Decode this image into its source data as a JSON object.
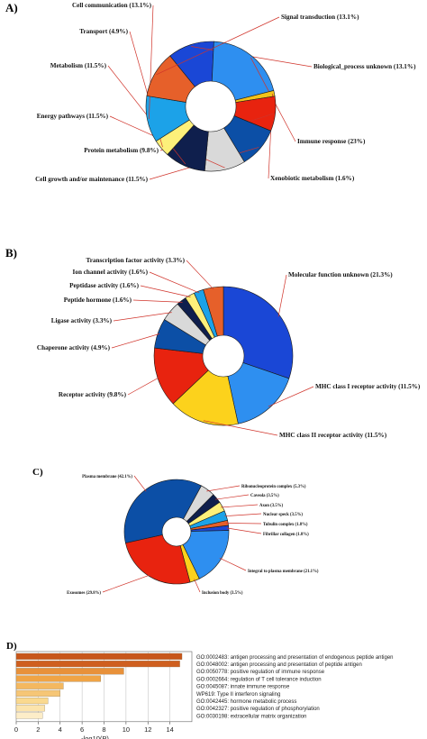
{
  "chart_data": [
    {
      "panel": "A)",
      "type": "pie",
      "slices": [
        {
          "label": "Biological_process unknown",
          "value": 13.1,
          "color": "#1a47d6",
          "text": "Biological_process unknown (13.1%)"
        },
        {
          "label": "Immune response",
          "value": 23,
          "color": "#2e8ff0",
          "text": "Immune response (23%)"
        },
        {
          "label": "Xenobiotic metabolism",
          "value": 1.6,
          "color": "#f2c21b",
          "text": "Xenobiotic metabolism (1.6%)"
        },
        {
          "label": "Protein metabolism",
          "value": 9.8,
          "color": "#e8230f",
          "text": "Protein metabolism (9.8%)"
        },
        {
          "label": "Cell growth and/or maintenance",
          "value": 11.5,
          "color": "#0c4fa6",
          "text": "Cell growth and/or maintenance (11.5%)"
        },
        {
          "label": "Energy pathways",
          "value": 11.5,
          "color": "#d9d9d9",
          "text": "Energy pathways (11.5%)"
        },
        {
          "label": "Metabolism",
          "value": 11.5,
          "color": "#0f1f4d",
          "text": "Metabolism (11.5%)"
        },
        {
          "label": "Transport",
          "value": 4.9,
          "color": "#fdf07a",
          "text": "Transport (4.9%)"
        },
        {
          "label": "Cell communication",
          "value": 13.1,
          "color": "#1ca2e8",
          "text": "Cell communication (13.1%)"
        },
        {
          "label": "Signal transduction",
          "value": 13.1,
          "color": "#e6602a",
          "text": "Signal transduction (13.1%)"
        }
      ]
    },
    {
      "panel": "B)",
      "type": "pie",
      "slices": [
        {
          "label": "Molecular function unknown",
          "value": 21.3,
          "color": "#1a47d6",
          "text": "Molecular function unknown (21.3%)"
        },
        {
          "label": "MHC class I receptor activity",
          "value": 11.5,
          "color": "#2e8ff0",
          "text": "MHC class I receptor activity (11.5%)"
        },
        {
          "label": "MHC class II receptor activity",
          "value": 11.5,
          "color": "#fcd21c",
          "text": "MHC class II receptor activity (11.5%)"
        },
        {
          "label": "Receptor activity",
          "value": 9.8,
          "color": "#e8230f",
          "text": "Receptor activity (9.8%)"
        },
        {
          "label": "Chaperone activity",
          "value": 4.9,
          "color": "#0c4fa6",
          "text": "Chaperone activity (4.9%)"
        },
        {
          "label": "Ligase activity",
          "value": 3.3,
          "color": "#d9d9d9",
          "text": "Ligase activity (3.3%)"
        },
        {
          "label": "Peptide hormone",
          "value": 1.6,
          "color": "#0f1f4d",
          "text": "Peptide hormone (1.6%)"
        },
        {
          "label": "Peptidase activity",
          "value": 1.6,
          "color": "#fdf07a",
          "text": "Peptidase activity (1.6%)"
        },
        {
          "label": "Ion channel activity",
          "value": 1.6,
          "color": "#1ca2e8",
          "text": "Ion channel activity (1.6%)"
        },
        {
          "label": "Transcription factor activity",
          "value": 3.3,
          "color": "#e6602a",
          "text": "Transcription factor activity (3.3%)"
        }
      ]
    },
    {
      "panel": "C)",
      "type": "pie",
      "slices": [
        {
          "label": "Fibrillar collagen",
          "value": 1.8,
          "color": "#1a47d6",
          "text": "Fibrillar collagen (1.8%)"
        },
        {
          "label": "Integral to plasma membrane",
          "value": 21.1,
          "color": "#2e8ff0",
          "text": "Integral to plasma membrane (21.1%)"
        },
        {
          "label": "Inclusion body",
          "value": 3.5,
          "color": "#fcd21c",
          "text": "Inclusion body (3.5%)"
        },
        {
          "label": "Exosomes",
          "value": 29.8,
          "color": "#e8230f",
          "text": "Exosomes (29.8%)"
        },
        {
          "label": "Plasma membrane",
          "value": 42.1,
          "color": "#0c4fa6",
          "text": "Plasma membrane (42.1%)"
        },
        {
          "label": "Ribonucleoprotein complex",
          "value": 5.3,
          "color": "#d9d9d9",
          "text": "Ribonucleoprotein complex (5.3%)"
        },
        {
          "label": "Caveola",
          "value": 3.5,
          "color": "#0f1f4d",
          "text": "Caveola (3.5%)"
        },
        {
          "label": "Axon",
          "value": 3.5,
          "color": "#fdf07a",
          "text": "Axon (3.5%)"
        },
        {
          "label": "Nuclear speck",
          "value": 3.5,
          "color": "#1ca2e8",
          "text": "Nuclear speck (3.5%)"
        },
        {
          "label": "Tubulin complex",
          "value": 1.8,
          "color": "#e6602a",
          "text": "Tubulin complex (1.8%)"
        }
      ]
    },
    {
      "panel": "D)",
      "type": "bar",
      "orientation": "horizontal",
      "xlabel": "-log10(P)",
      "xlim": [
        0,
        16
      ],
      "xticks": [
        0,
        2,
        4,
        6,
        8,
        10,
        12,
        14
      ],
      "bars": [
        {
          "label": "GO:0002483: antigen processing and presentation of endogenous peptide antigen",
          "value": 15.1,
          "color": "#c8561a"
        },
        {
          "label": "GO:0048002: antigen processing and presentation of peptide antigen",
          "value": 14.9,
          "color": "#cf5f1f"
        },
        {
          "label": "GO:0050778: positive regulation of immune response",
          "value": 9.8,
          "color": "#e8913a"
        },
        {
          "label": "GO:0002664: regulation of T cell tolerance induction",
          "value": 7.7,
          "color": "#f0a445"
        },
        {
          "label": "GO:0045087: innate immune response",
          "value": 4.3,
          "color": "#f4b860"
        },
        {
          "label": "WP619: Type II interferon signaling",
          "value": 4.0,
          "color": "#f6c676"
        },
        {
          "label": "GO:0042445: hormone metabolic process",
          "value": 2.9,
          "color": "#fad98f"
        },
        {
          "label": "GO:0042327: positive regulation of phosphorylation",
          "value": 2.6,
          "color": "#fce4ac"
        },
        {
          "label": "GO:0030198: extracellular matrix organization",
          "value": 2.4,
          "color": "#fdedc8"
        }
      ]
    }
  ]
}
